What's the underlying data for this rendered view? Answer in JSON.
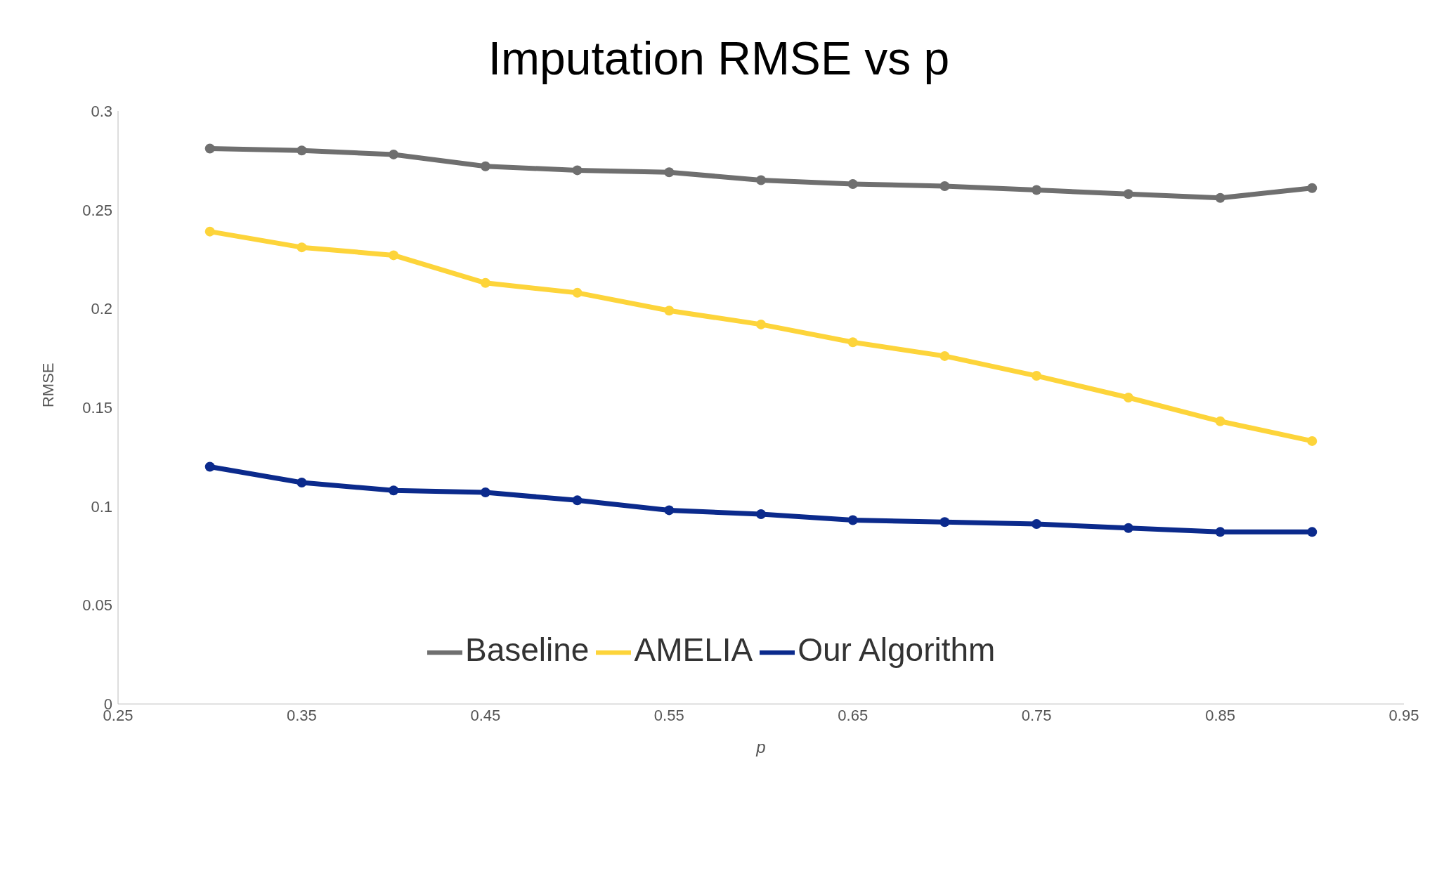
{
  "chart_data": {
    "type": "line",
    "title": "Imputation RMSE vs p",
    "xlabel": "p",
    "ylabel": "RMSE",
    "x": [
      0.3,
      0.35,
      0.4,
      0.45,
      0.5,
      0.55,
      0.6,
      0.65,
      0.7,
      0.75,
      0.8,
      0.85,
      0.9
    ],
    "series": [
      {
        "name": "Baseline",
        "color": "#6f6f6f",
        "values": [
          0.281,
          0.28,
          0.278,
          0.272,
          0.27,
          0.269,
          0.265,
          0.263,
          0.262,
          0.26,
          0.258,
          0.256,
          0.261
        ]
      },
      {
        "name": "AMELIA",
        "color": "#fdd43a",
        "values": [
          0.239,
          0.231,
          0.227,
          0.213,
          0.208,
          0.199,
          0.192,
          0.183,
          0.176,
          0.166,
          0.155,
          0.143,
          0.133
        ]
      },
      {
        "name": "Our Algorithm",
        "color": "#0b2a8c",
        "values": [
          0.12,
          0.112,
          0.108,
          0.107,
          0.103,
          0.098,
          0.096,
          0.093,
          0.092,
          0.091,
          0.089,
          0.087,
          0.087
        ]
      }
    ],
    "xlim": [
      0.25,
      0.95
    ],
    "xticks": [
      0.25,
      0.35,
      0.45,
      0.55,
      0.65,
      0.75,
      0.85,
      0.95
    ],
    "ylim": [
      0,
      0.3
    ],
    "yticks": [
      0,
      0.05,
      0.1,
      0.15,
      0.2,
      0.25,
      0.3
    ],
    "grid": false,
    "legend": "bottom",
    "marker": "circle",
    "line_style": "solid"
  }
}
